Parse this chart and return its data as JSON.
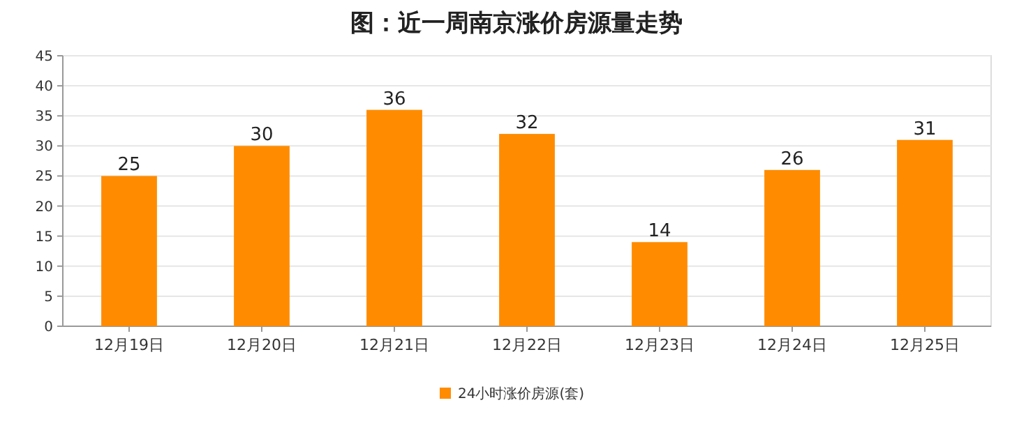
{
  "chart_data": {
    "type": "bar",
    "title": "图：近一周南京涨价房源量走势",
    "categories": [
      "12月19日",
      "12月20日",
      "12月21日",
      "12月22日",
      "12月23日",
      "12月24日",
      "12月25日"
    ],
    "series": [
      {
        "name": "24小时涨价房源(套)",
        "color": "#ff8c00",
        "values": [
          25,
          30,
          36,
          32,
          14,
          26,
          31
        ]
      }
    ],
    "ylim": [
      0,
      45
    ],
    "yticks": [
      0,
      5,
      10,
      15,
      20,
      25,
      30,
      35,
      40,
      45
    ],
    "grid": "y",
    "legend": "bottom",
    "data_labels": true
  }
}
